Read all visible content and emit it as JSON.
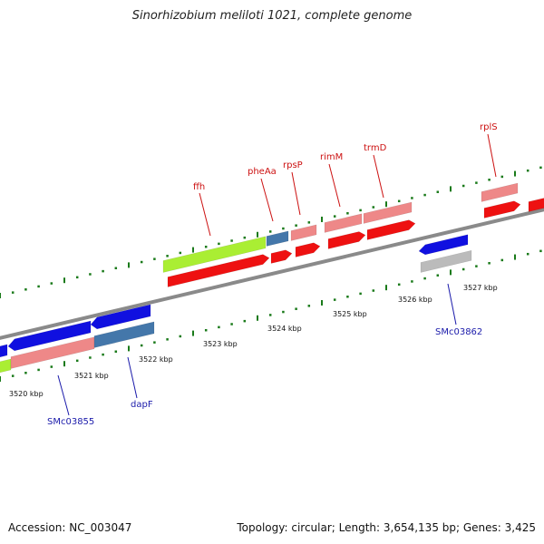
{
  "title": "Sinorhizobium meliloti 1021, complete genome",
  "footer": {
    "accession": "Accession: NC_003047",
    "summary": "Topology: circular; Length: 3,654,135 bp; Genes: 3,425"
  },
  "colors": {
    "backbone": "#8a8a8a",
    "tick": "#1a7a1a",
    "forward_gene_label": "#cc1111",
    "reverse_gene_label": "#1a1aaa",
    "cds_red": "#ee1111",
    "light_red": "#ee8888",
    "blue": "#1010e0",
    "steel_blue": "#4477aa",
    "lime": "#aaee33",
    "gray": "#bbbbbb"
  },
  "scale_labels": [
    "3520 kbp",
    "3521 kbp",
    "3522 kbp",
    "3523 kbp",
    "3524 kbp",
    "3525 kbp",
    "3526 kbp",
    "3527 kbp"
  ],
  "forward_gene_labels": [
    "ffh",
    "pheAa",
    "rpsP",
    "rimM",
    "trmD",
    "rplS"
  ],
  "reverse_gene_labels": [
    "SMc03855",
    "dapF",
    "SMc03862"
  ]
}
